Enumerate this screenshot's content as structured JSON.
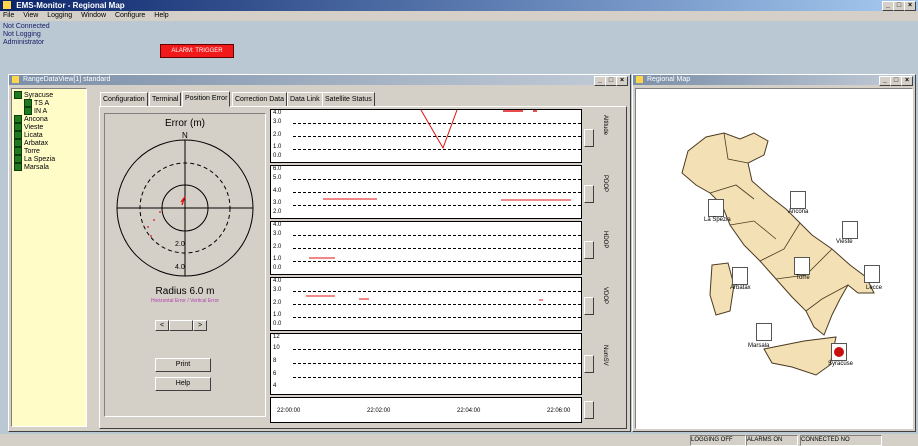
{
  "app": {
    "title": "EMS-Monitor - Regional Map",
    "menu": [
      "File",
      "View",
      "Logging",
      "Window",
      "Configure",
      "Help"
    ],
    "status_lines": [
      "Not Connected",
      "Not Logging",
      "Administrator"
    ],
    "alarm_label": "ALARM: TRIGGER",
    "alarm_color": "#f01a1a",
    "window_buttons": [
      "_",
      "□",
      "×"
    ]
  },
  "rdv": {
    "title": "RangeDataView[1] standard",
    "tree": [
      {
        "label": "Syracuse",
        "kind": "root"
      },
      {
        "label": "TS   A",
        "kind": "child"
      },
      {
        "label": "IN   A",
        "kind": "child"
      },
      {
        "label": "Ancona",
        "kind": "site"
      },
      {
        "label": "Vieste",
        "kind": "site"
      },
      {
        "label": "Licata",
        "kind": "site"
      },
      {
        "label": "Arbatax",
        "kind": "site"
      },
      {
        "label": "Torre",
        "kind": "site"
      },
      {
        "label": "La Spezia",
        "kind": "site"
      },
      {
        "label": "Marsala",
        "kind": "site"
      }
    ],
    "tabs": [
      "Configuration",
      "Terminal",
      "Position Error",
      "Correction Data",
      "Data Link",
      "Satellite Status"
    ],
    "selected_tab": "Position Error",
    "polar": {
      "title": "Error (m)",
      "north": "N",
      "ring_labels": [
        "2.0",
        "4.0"
      ],
      "radius_text": "Radius 6.0 m",
      "legend_text": "Horizontal Error / Vertical Error",
      "print_label": "Print",
      "help_label": "Help",
      "nav_left": "<",
      "nav_right": ">"
    },
    "strips": [
      {
        "ticks": [
          "4.0",
          "3.0",
          "2.0",
          "1.0",
          "0.0"
        ],
        "side": "Altitude"
      },
      {
        "ticks": [
          "6.0",
          "5.0",
          "4.0",
          "3.0",
          "2.0"
        ],
        "side": "PDOP"
      },
      {
        "ticks": [
          "4.0",
          "3.0",
          "2.0",
          "1.0",
          "0.0"
        ],
        "side": "HDOP"
      },
      {
        "ticks": [
          "4.0",
          "3.0",
          "2.0",
          "1.0",
          "0.0"
        ],
        "side": "VDOP"
      },
      {
        "ticks": [
          "12",
          "10",
          "8",
          "6",
          "4"
        ],
        "side": "NumSV"
      }
    ],
    "time_ticks": [
      "22:00:00",
      "22:02:00",
      "22:04:00",
      "22:06:00"
    ],
    "series_color": "#e01010"
  },
  "map": {
    "title": "Regional Map",
    "cities": [
      "La Spezia",
      "Ancona",
      "Vieste",
      "Arbatax",
      "Torre",
      "Lecce",
      "Marsala",
      "Syracuse"
    ],
    "land_color": "#f3e0b4",
    "sea_color": "#ffffff",
    "marker_color": "#c81010"
  },
  "statusbar": {
    "logging": "LOGGING OFF",
    "alarms": "ALARMS ON",
    "connected": "CONNECTED NO"
  }
}
